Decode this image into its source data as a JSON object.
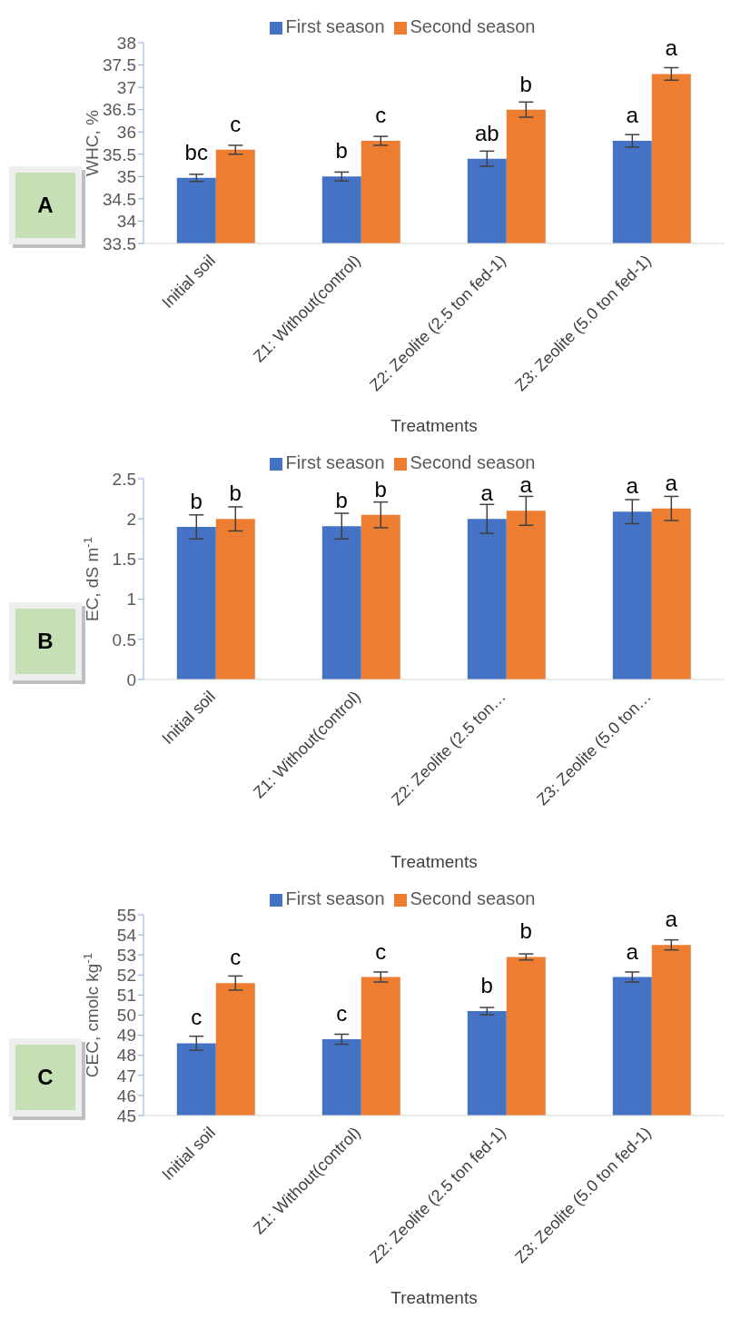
{
  "chart_data": [
    {
      "type": "bar",
      "categories": [
        "Initial soil",
        "Z1: Without(control)",
        "Z2: Zeolite (2.5 ton fed-1)",
        "Z3: Zeolite (5.0 ton fed-1)"
      ],
      "xlabel": "Treatments",
      "ylabel": "WHC, %",
      "ylim": [
        33.5,
        38
      ],
      "yticks": [
        33.5,
        34,
        34.5,
        35,
        35.5,
        36,
        36.5,
        37,
        37.5,
        38
      ],
      "legend": "top",
      "annotations": [
        "A"
      ],
      "series": [
        {
          "name": "First season",
          "color": "#4472c4",
          "values": [
            34.97,
            35.0,
            35.4,
            35.8
          ],
          "errors": [
            0.08,
            0.1,
            0.17,
            0.14
          ],
          "value_labels": [
            "bc",
            "b",
            "ab",
            "a"
          ]
        },
        {
          "name": "Second season",
          "color": "#ed7d31",
          "values": [
            35.6,
            35.8,
            36.5,
            37.3
          ],
          "errors": [
            0.1,
            0.1,
            0.17,
            0.14
          ],
          "value_labels": [
            "c",
            "c",
            "b",
            "a"
          ]
        }
      ]
    },
    {
      "type": "bar",
      "categories": [
        "Initial soil",
        "Z1: Without(control)",
        "Z2: Zeolite (2.5 ton…",
        "Z3: Zeolite (5.0 ton…"
      ],
      "xlabel": "Treatments",
      "ylabel": "EC, dS m$^{-1}$",
      "ylim": [
        0,
        2.5
      ],
      "yticks": [
        0,
        0.5,
        1,
        1.5,
        2,
        2.5
      ],
      "legend": "top",
      "annotations": [
        "B"
      ],
      "series": [
        {
          "name": "First season",
          "color": "#4472c4",
          "values": [
            1.9,
            1.91,
            2.0,
            2.09
          ],
          "errors": [
            0.15,
            0.16,
            0.18,
            0.15
          ],
          "value_labels": [
            "b",
            "b",
            "a",
            "a"
          ]
        },
        {
          "name": "Second season",
          "color": "#ed7d31",
          "values": [
            2.0,
            2.05,
            2.1,
            2.13
          ],
          "errors": [
            0.15,
            0.16,
            0.18,
            0.15
          ],
          "value_labels": [
            "b",
            "b",
            "a",
            "a"
          ]
        }
      ]
    },
    {
      "type": "bar",
      "categories": [
        "Initial soil",
        "Z1: Without(control)",
        "Z2: Zeolite (2.5 ton fed-1)",
        "Z3: Zeolite (5.0 ton fed-1)"
      ],
      "xlabel": "Treatments",
      "ylabel": "CEC, cmolc kg$^{-1}$",
      "ylim": [
        45,
        55
      ],
      "yticks": [
        45,
        46,
        47,
        48,
        49,
        50,
        51,
        52,
        53,
        54,
        55
      ],
      "legend": "top",
      "annotations": [
        "C"
      ],
      "series": [
        {
          "name": "First season",
          "color": "#4472c4",
          "values": [
            48.6,
            48.8,
            50.2,
            51.9
          ],
          "errors": [
            0.35,
            0.25,
            0.18,
            0.25
          ],
          "value_labels": [
            "c",
            "c",
            "b",
            "a"
          ]
        },
        {
          "name": "Second season",
          "color": "#ed7d31",
          "values": [
            51.6,
            51.9,
            52.9,
            53.5
          ],
          "errors": [
            0.35,
            0.25,
            0.15,
            0.25
          ],
          "value_labels": [
            "c",
            "c",
            "b",
            "a"
          ]
        }
      ]
    }
  ]
}
